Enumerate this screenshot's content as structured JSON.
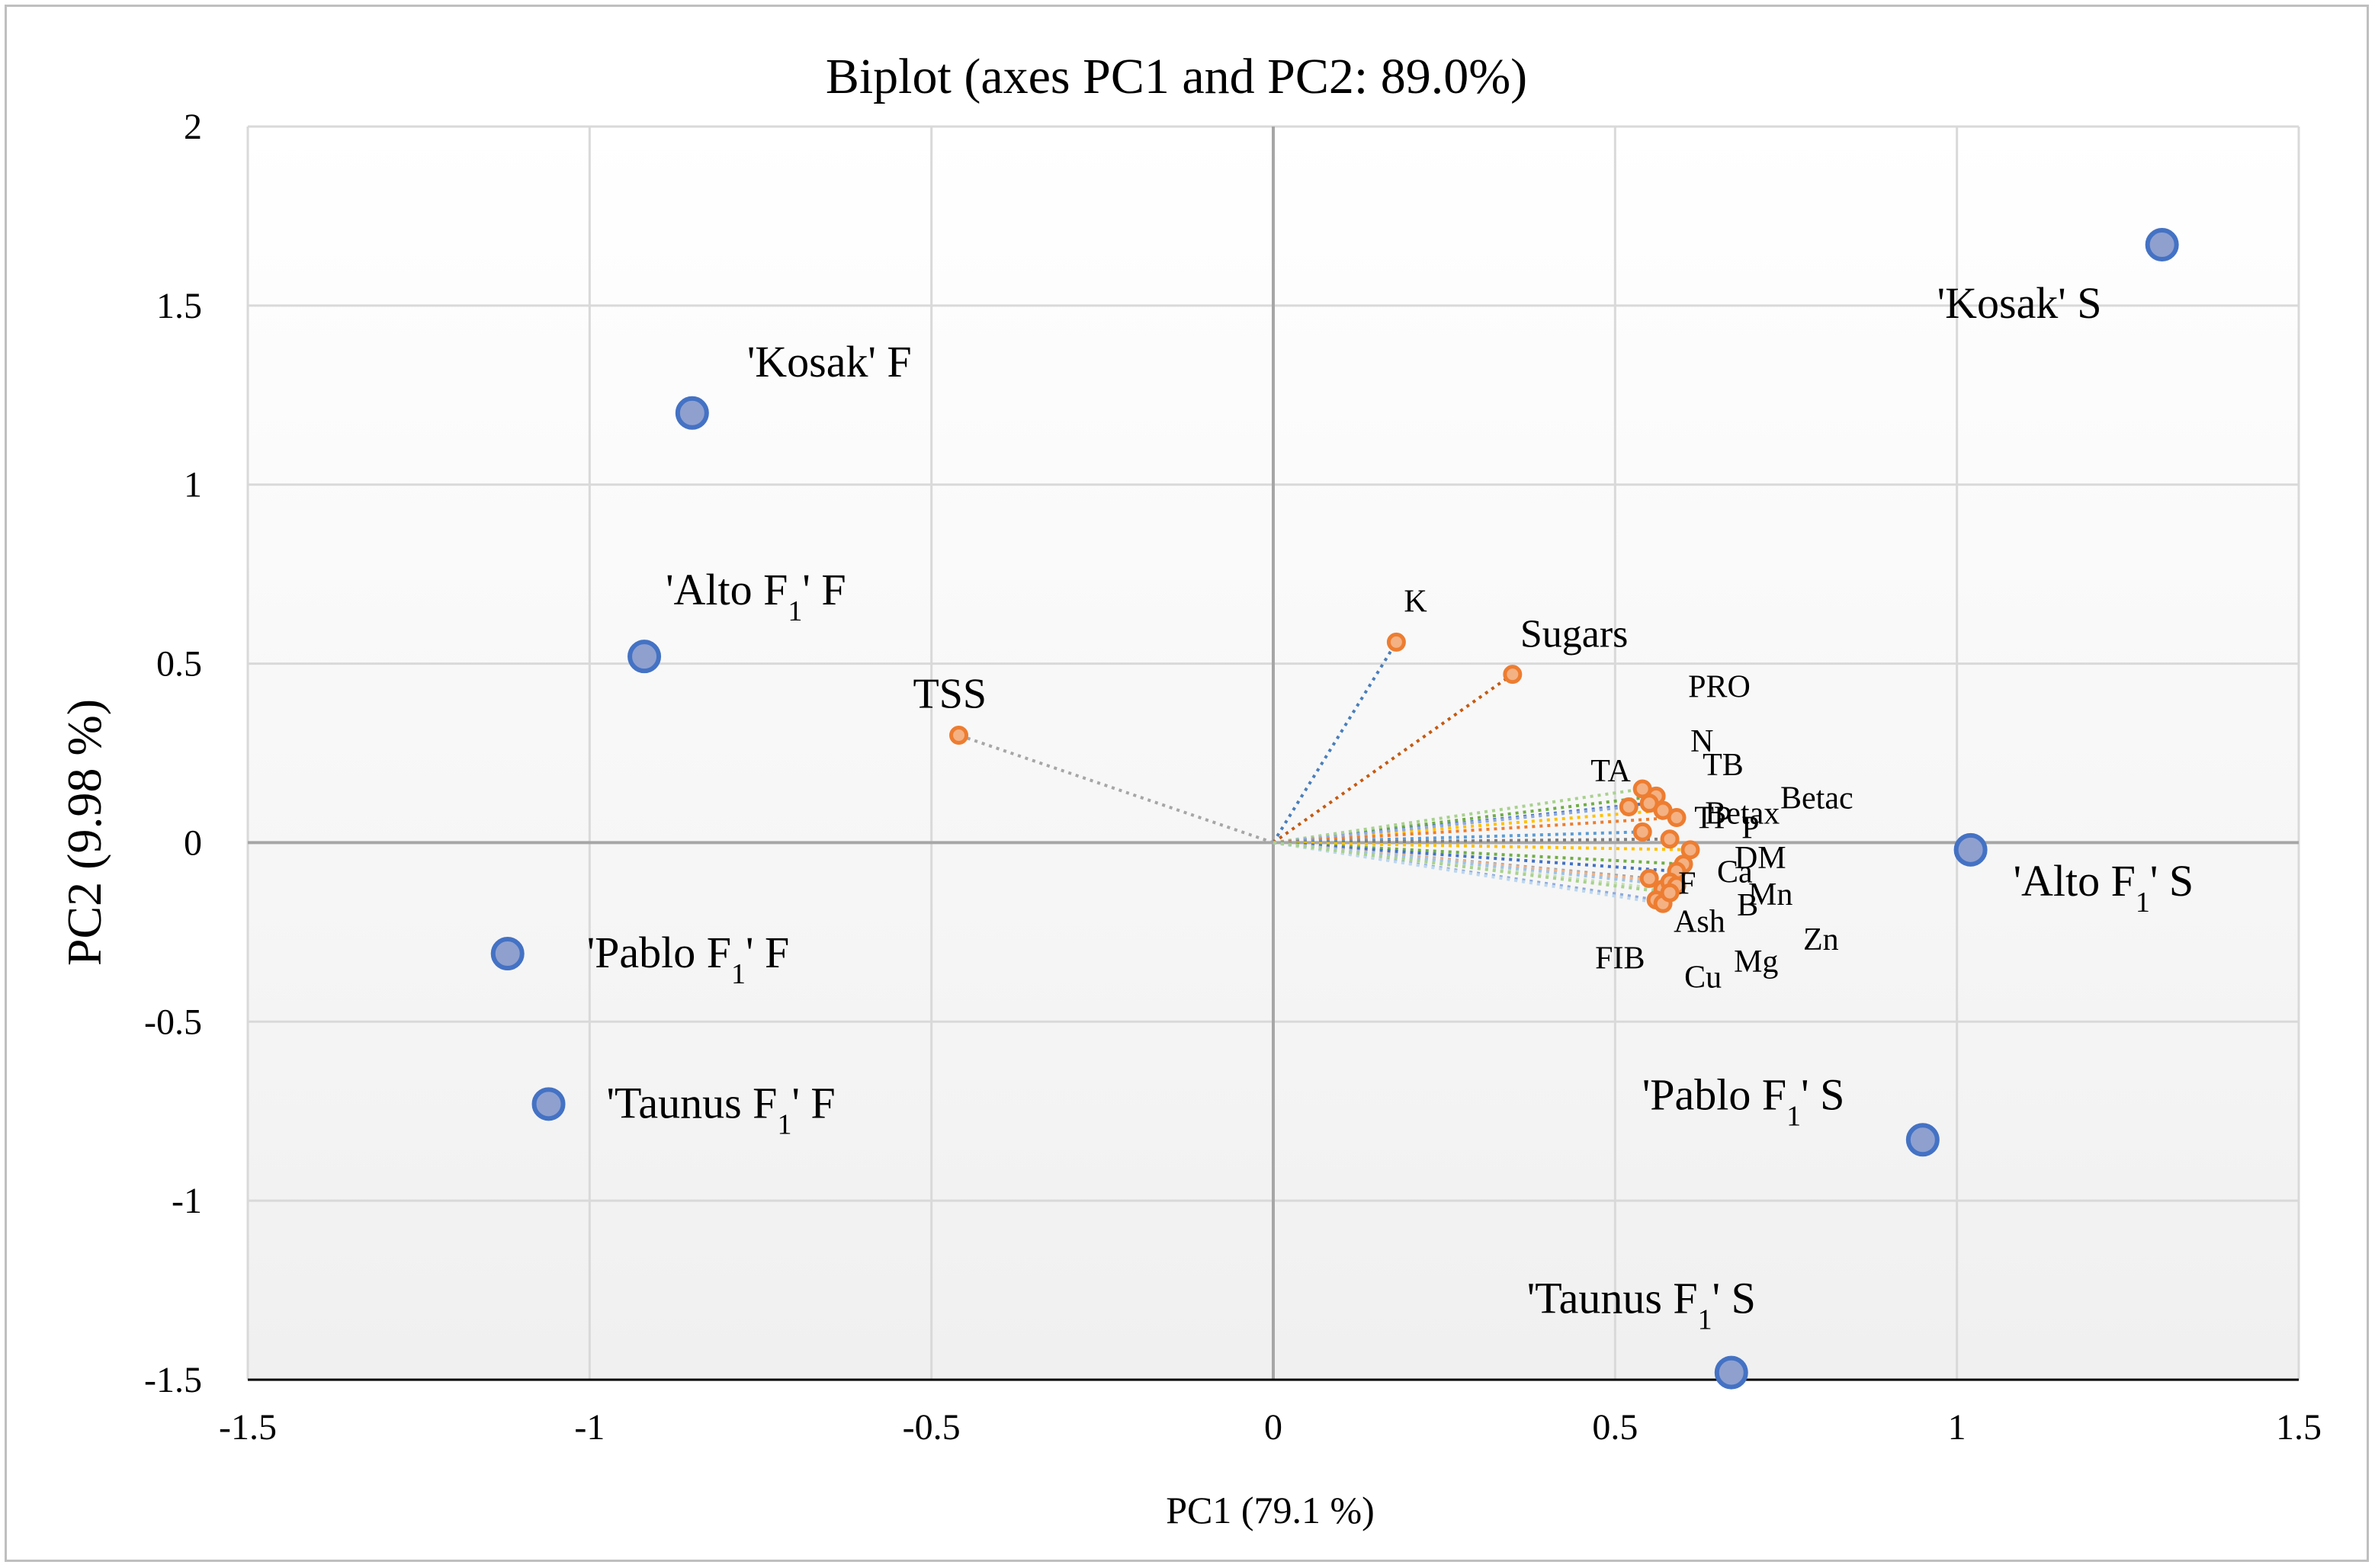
{
  "chart_data": {
    "type": "scatter",
    "title": "Biplot (axes PC1 and PC2: 89.0%)",
    "xlabel": "PC1 (79.1 %)",
    "ylabel": "PC2 (9.98 %)",
    "xlim": [
      -1.5,
      1.5
    ],
    "ylim": [
      -1.5,
      2
    ],
    "x_ticks": [
      -1.5,
      -1,
      -0.5,
      0,
      0.5,
      1,
      1.5
    ],
    "y_ticks": [
      -1.5,
      -1,
      -0.5,
      0,
      0.5,
      1,
      1.5,
      2
    ],
    "x_tick_labels": [
      "-1.5",
      "-1",
      "-0.5",
      "0",
      "0.5",
      "1",
      "1.5"
    ],
    "y_tick_labels": [
      "-1.5",
      "-1",
      "-0.5",
      "0",
      "0.5",
      "1",
      "1.5",
      "2"
    ],
    "grid": true,
    "colors": {
      "observation_fill": "#8fa0cf",
      "observation_stroke": "#4472c4",
      "variable_fill": "#f4b183",
      "variable_stroke": "#ed7d31",
      "grid": "#d9d9d9",
      "axis": "#a6a6a6"
    },
    "series": [
      {
        "name": "Observations",
        "points": [
          {
            "label": "'Kosak' F",
            "label_main": "'Kosak' F",
            "label_sub": "",
            "label_tail": "",
            "x": -0.85,
            "y": 1.2
          },
          {
            "label": "'Alto F1' F",
            "label_main": "'Alto F",
            "label_sub": "1",
            "label_tail": "' F",
            "x": -0.92,
            "y": 0.52
          },
          {
            "label": "'Pablo F1' F",
            "label_main": "'Pablo F",
            "label_sub": "1",
            "label_tail": "' F",
            "x": -1.12,
            "y": -0.31
          },
          {
            "label": "'Taunus F1' F",
            "label_main": "'Taunus F",
            "label_sub": "1",
            "label_tail": "' F",
            "x": -1.06,
            "y": -0.73
          },
          {
            "label": "'Kosak'  S",
            "label_main": "'Kosak'  S",
            "label_sub": "",
            "label_tail": "",
            "x": 1.3,
            "y": 1.67
          },
          {
            "label": "'Alto F1' S",
            "label_main": "'Alto F",
            "label_sub": "1",
            "label_tail": "' S",
            "x": 1.02,
            "y": -0.02
          },
          {
            "label": "'Pablo F1' S",
            "label_main": "'Pablo F",
            "label_sub": "1",
            "label_tail": "' S",
            "x": 0.95,
            "y": -0.83
          },
          {
            "label": "'Taunus F1' S",
            "label_main": "'Taunus F",
            "label_sub": "1",
            "label_tail": "' S",
            "x": 0.67,
            "y": -1.48
          }
        ]
      },
      {
        "name": "Variables",
        "points": [
          {
            "label": "K",
            "x": 0.18,
            "y": 0.56,
            "line_color": "#4a7ebb"
          },
          {
            "label": "Sugars",
            "x": 0.35,
            "y": 0.47,
            "line_color": "#c55a11"
          },
          {
            "label": "TSS",
            "x": -0.46,
            "y": 0.3,
            "line_color": "#a6a6a6"
          },
          {
            "label": "PRO",
            "x": 0.56,
            "y": 0.13,
            "line_color": "#70ad47"
          },
          {
            "label": "N",
            "x": 0.55,
            "y": 0.11,
            "line_color": "#4472c4"
          },
          {
            "label": "TB",
            "x": 0.57,
            "y": 0.09,
            "line_color": "#ffc000"
          },
          {
            "label": "TA",
            "x": 0.54,
            "y": 0.15,
            "line_color": "#a9d18e"
          },
          {
            "label": "Betax",
            "x": 0.52,
            "y": 0.1,
            "line_color": "#8faadc"
          },
          {
            "label": "Betac",
            "x": 0.59,
            "y": 0.07,
            "line_color": "#ed7d31"
          },
          {
            "label": "TP",
            "x": 0.54,
            "y": 0.03,
            "line_color": "#5b9bd5"
          },
          {
            "label": "P",
            "x": 0.58,
            "y": 0.01,
            "line_color": "#7f7f7f"
          },
          {
            "label": "DM",
            "x": 0.61,
            "y": -0.02,
            "line_color": "#ffc000"
          },
          {
            "label": "Ca",
            "x": 0.6,
            "y": -0.06,
            "line_color": "#70ad47"
          },
          {
            "label": "F",
            "x": 0.55,
            "y": -0.1,
            "line_color": "#a5a5a5"
          },
          {
            "label": "Mn",
            "x": 0.59,
            "y": -0.08,
            "line_color": "#4472c4"
          },
          {
            "label": "Ash",
            "x": 0.57,
            "y": -0.13,
            "line_color": "#c5e0b4"
          },
          {
            "label": "B",
            "x": 0.58,
            "y": -0.11,
            "line_color": "#f4b183"
          },
          {
            "label": "Zn",
            "x": 0.59,
            "y": -0.12,
            "line_color": "#9dc3e6"
          },
          {
            "label": "FIB",
            "x": 0.56,
            "y": -0.16,
            "line_color": "#8faadc"
          },
          {
            "label": "Cu",
            "x": 0.57,
            "y": -0.17,
            "line_color": "#bdd7ee"
          },
          {
            "label": "Mg",
            "x": 0.58,
            "y": -0.14,
            "line_color": "#a9d18e"
          }
        ]
      }
    ]
  }
}
